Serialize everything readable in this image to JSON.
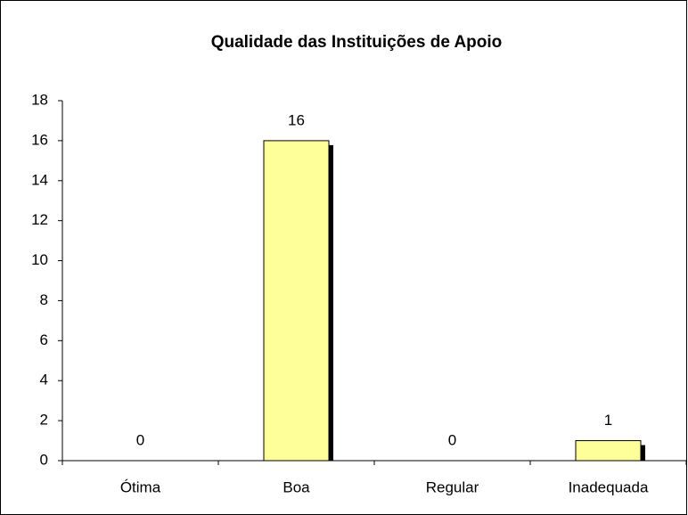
{
  "chart_data": {
    "type": "bar",
    "title": "Qualidade das Instituições de Apoio",
    "categories": [
      "Ótima",
      "Boa",
      "Regular",
      "Inadequada"
    ],
    "values": [
      0,
      16,
      0,
      1
    ],
    "color": "#ffff99",
    "ylim": [
      0,
      18
    ],
    "yticks": [
      0,
      2,
      4,
      6,
      8,
      10,
      12,
      14,
      16,
      18
    ],
    "grid": false
  }
}
